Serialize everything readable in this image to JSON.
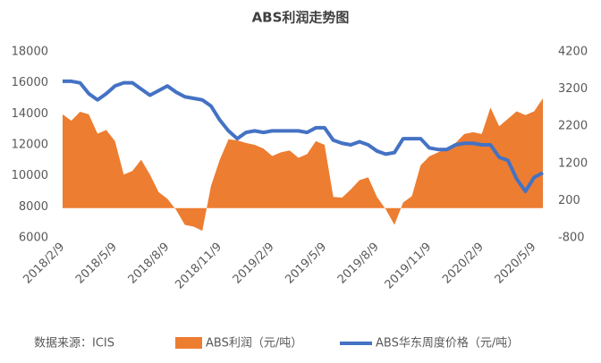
{
  "chart_data": {
    "type": "combo",
    "title": "ABS利润走势图",
    "source": "数据来源：ICIS",
    "categories": [
      "2018/2/9",
      null,
      null,
      null,
      null,
      null,
      "2018/5/9",
      null,
      null,
      null,
      null,
      null,
      "2018/8/9",
      null,
      null,
      null,
      null,
      null,
      "2018/11/9",
      null,
      null,
      null,
      null,
      null,
      "2019/2/9",
      null,
      null,
      null,
      null,
      null,
      "2019/5/9",
      null,
      null,
      null,
      null,
      null,
      "2019/8/9",
      null,
      null,
      null,
      null,
      null,
      "2019/11/9",
      null,
      null,
      null,
      null,
      null,
      "2020/2/9",
      null,
      null,
      null,
      null,
      null,
      "2020/5/9",
      null
    ],
    "series": [
      {
        "name": "ABS利润（元/吨）",
        "type": "area",
        "axis": "y2",
        "color": "#ED7D31",
        "values": [
          2520,
          2350,
          2590,
          2520,
          2000,
          2100,
          1800,
          900,
          1000,
          1300,
          900,
          430,
          250,
          -50,
          -450,
          -500,
          -610,
          600,
          1300,
          1850,
          1820,
          1750,
          1700,
          1600,
          1400,
          1500,
          1550,
          1350,
          1450,
          1800,
          1700,
          300,
          280,
          500,
          750,
          830,
          300,
          -30,
          -450,
          150,
          320,
          1150,
          1390,
          1500,
          1600,
          1750,
          1990,
          2040,
          1990,
          2700,
          2200,
          2400,
          2600,
          2500,
          2600,
          2950
        ]
      },
      {
        "name": "ABS华东周度价格（元/吨）",
        "type": "line",
        "color": "#4472C4",
        "values": [
          16100,
          16100,
          16000,
          15300,
          14900,
          15300,
          15800,
          16000,
          16000,
          15600,
          15200,
          15500,
          15800,
          15400,
          15100,
          15000,
          14900,
          14500,
          13600,
          12900,
          12400,
          12800,
          12900,
          12800,
          12900,
          12900,
          12900,
          12900,
          12800,
          13100,
          13100,
          12300,
          12100,
          12000,
          12200,
          12000,
          11600,
          11400,
          11500,
          12400,
          12400,
          12400,
          11800,
          11700,
          11700,
          12000,
          12100,
          12100,
          12000,
          12000,
          11200,
          11000,
          9800,
          9000,
          9900,
          10200
        ]
      }
    ],
    "ylim": [
      6000,
      18000
    ],
    "yticks": [
      6000,
      8000,
      10000,
      12000,
      14000,
      16000,
      18000
    ],
    "y2lim": [
      -800,
      4200
    ],
    "y2ticks": [
      -800,
      200,
      1200,
      2200,
      3200,
      4200
    ]
  }
}
